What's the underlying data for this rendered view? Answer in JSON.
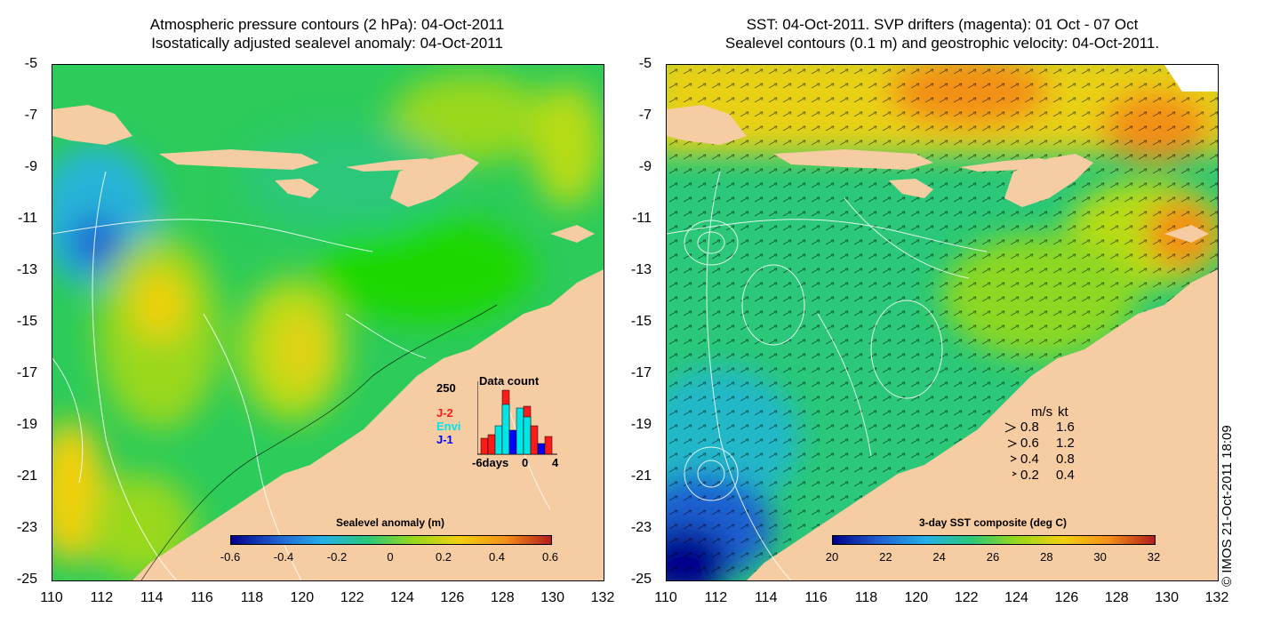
{
  "left_panel": {
    "title_line1": "Atmospheric pressure contours (2 hPa): 04-Oct-2011",
    "title_line2": "Isostatically adjusted sealevel anomaly: 04-Oct-2011",
    "colorbar": {
      "title": "Sealevel anomaly (m)",
      "ticks": [
        "-0.6",
        "-0.4",
        "-0.2",
        "0",
        "0.2",
        "0.4",
        "0.6"
      ],
      "colors": [
        "#00008b",
        "#1f5fd0",
        "#25b0e8",
        "#2ac878",
        "#9ad81a",
        "#f2d010",
        "#f39018",
        "#b41c1c"
      ]
    },
    "inset": {
      "title": "Data count",
      "ymax_label": "250",
      "xticks": [
        "-6days",
        "0",
        "4"
      ],
      "legend": [
        {
          "label": "J-2",
          "color": "#ff1a1a"
        },
        {
          "label": "Envi",
          "color": "#00e5e5"
        },
        {
          "label": "J-1",
          "color": "#0000ff"
        }
      ]
    }
  },
  "right_panel": {
    "title_line1": "SST: 04-Oct-2011. SVP drifters (magenta): 01 Oct - 07 Oct",
    "title_line2": "Sealevel contours (0.1 m) and geostrophic velocity: 04-Oct-2011.",
    "colorbar": {
      "title": "3-day SST composite (deg C)",
      "ticks": [
        "20",
        "22",
        "24",
        "26",
        "28",
        "30",
        "32"
      ],
      "colors": [
        "#00008b",
        "#1f5fd0",
        "#25b0e8",
        "#2ac878",
        "#9ad81a",
        "#f2d010",
        "#f39018",
        "#b41c1c"
      ]
    },
    "velocity_key": {
      "header_ms": "m/s",
      "header_kt": "kt",
      "rows": [
        {
          "ms": "0.8",
          "kt": "1.6"
        },
        {
          "ms": "0.6",
          "kt": "1.2"
        },
        {
          "ms": "0.4",
          "kt": "0.8"
        },
        {
          "ms": "0.2",
          "kt": "0.4"
        }
      ]
    }
  },
  "axes": {
    "x_ticks": [
      "110",
      "112",
      "114",
      "116",
      "118",
      "120",
      "122",
      "124",
      "126",
      "128",
      "130",
      "132"
    ],
    "y_ticks": [
      "-5",
      "-7",
      "-9",
      "-11",
      "-13",
      "-15",
      "-17",
      "-19",
      "-21",
      "-23",
      "-25"
    ]
  },
  "copyright": "© IMOS 21-Oct-2011 18:09"
}
